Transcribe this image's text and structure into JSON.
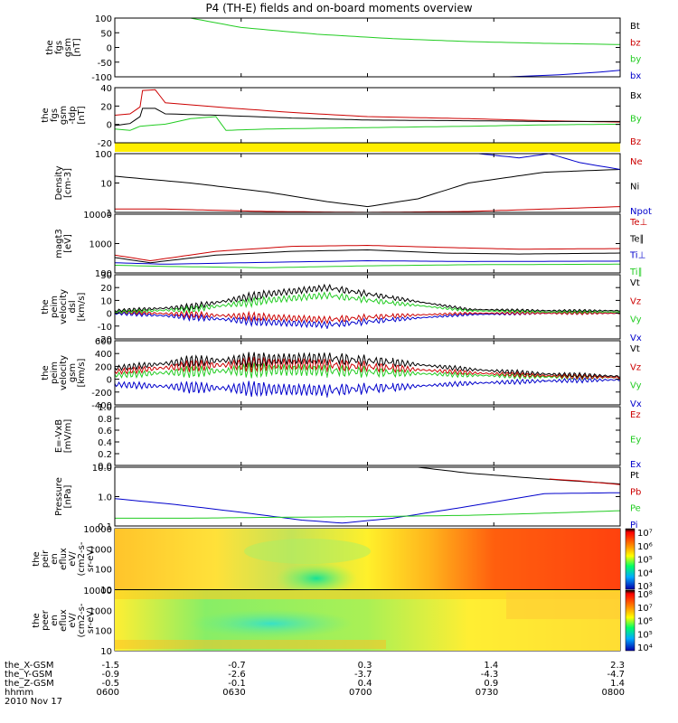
{
  "title": "P4 (TH-E) fields and on-board moments overview",
  "colors": {
    "black": "#000000",
    "red": "#cc0000",
    "green": "#22cc22",
    "blue": "#0000cc",
    "yellow": "#ffee00"
  },
  "chart_data": [
    {
      "type": "line",
      "id": "fgs-gsm",
      "ylabel": [
        "the",
        "fgs",
        "gsm",
        "[nT]"
      ],
      "yticks": [
        "100",
        "50",
        "0",
        "-50",
        "-100"
      ],
      "ylim": [
        -100,
        100
      ],
      "legend": [
        {
          "label": "Bt",
          "color": "black"
        },
        {
          "label": "bz",
          "color": "red"
        },
        {
          "label": "by",
          "color": "green"
        },
        {
          "label": "bx",
          "color": "blue"
        }
      ],
      "series": [
        {
          "name": "by",
          "color": "green",
          "x": [
            0.15,
            0.25,
            0.4,
            0.55,
            0.7,
            0.85,
            1.0
          ],
          "y": [
            100,
            68,
            45,
            30,
            20,
            14,
            10
          ]
        },
        {
          "name": "bx",
          "color": "blue",
          "x": [
            0.78,
            0.88,
            0.95,
            1.0
          ],
          "y": [
            -100,
            -93,
            -85,
            -78
          ]
        }
      ]
    },
    {
      "type": "line",
      "id": "fgs-gsm-tdp",
      "ylabel": [
        "the",
        "fgs",
        "gsm",
        "-tdp",
        "[nT]"
      ],
      "yticks": [
        "40",
        "20",
        "0",
        "-20"
      ],
      "ylim": [
        -30,
        50
      ],
      "legend": [
        {
          "label": "Bx",
          "color": "black"
        },
        {
          "label": "By",
          "color": "green"
        },
        {
          "label": "Bz",
          "color": "red"
        }
      ],
      "series": [
        {
          "name": "Bz",
          "color": "red",
          "x": [
            0,
            0.03,
            0.05,
            0.055,
            0.08,
            0.1,
            0.2,
            0.35,
            0.5,
            0.7,
            0.85,
            1.0
          ],
          "y": [
            10,
            12,
            22,
            46,
            47,
            28,
            22,
            14,
            8,
            5,
            2,
            0
          ]
        },
        {
          "name": "Bx",
          "color": "black",
          "x": [
            0,
            0.03,
            0.05,
            0.055,
            0.08,
            0.1,
            0.2,
            0.35,
            0.5,
            0.7,
            0.85,
            1.0
          ],
          "y": [
            -5,
            -2,
            8,
            20,
            20,
            12,
            10,
            6,
            3,
            2,
            1,
            1
          ]
        },
        {
          "name": "By",
          "color": "green",
          "x": [
            0,
            0.03,
            0.05,
            0.1,
            0.15,
            0.2,
            0.22,
            0.3,
            0.5,
            0.7,
            0.85,
            1.0
          ],
          "y": [
            -10,
            -12,
            -6,
            -3,
            5,
            8,
            -12,
            -10,
            -8,
            -6,
            -4,
            -3
          ]
        }
      ]
    },
    {
      "type": "line",
      "id": "density",
      "ylabel": [
        "Density",
        "[cm-3]"
      ],
      "scale": "log",
      "yticks": [
        "100",
        "10",
        "1"
      ],
      "ylim": [
        0.5,
        200
      ],
      "legend": [
        {
          "label": "Ne",
          "color": "red"
        },
        {
          "label": "Ni",
          "color": "black"
        },
        {
          "label": "Npot",
          "color": "blue"
        }
      ],
      "series": [
        {
          "name": "Ni",
          "color": "black",
          "x": [
            0,
            0.15,
            0.3,
            0.42,
            0.5,
            0.6,
            0.7,
            0.85,
            1.0
          ],
          "y": [
            20,
            10,
            4,
            1.5,
            0.9,
            2,
            10,
            30,
            40
          ]
        },
        {
          "name": "Ne",
          "color": "red",
          "x": [
            0,
            0.1,
            0.3,
            0.5,
            0.7,
            0.85,
            1.0
          ],
          "y": [
            0.7,
            0.7,
            0.55,
            0.5,
            0.55,
            0.7,
            0.9
          ]
        },
        {
          "name": "Npot",
          "color": "blue",
          "x": [
            0.72,
            0.8,
            0.86,
            0.92,
            1.0
          ],
          "y": [
            200,
            130,
            200,
            80,
            40
          ]
        }
      ]
    },
    {
      "type": "line",
      "id": "mom-temp",
      "ylabel": [
        "magt3",
        "[eV]"
      ],
      "scale": "log",
      "yticks": [
        "10000",
        "1000",
        "100"
      ],
      "ylim": [
        100,
        20000
      ],
      "legend": [
        {
          "label": "Te⊥",
          "color": "red"
        },
        {
          "label": "Te∥",
          "color": "black"
        },
        {
          "label": "Ti⊥",
          "color": "blue"
        },
        {
          "label": "Ti∥",
          "color": "green"
        }
      ],
      "series": [
        {
          "name": "Te⊥",
          "color": "red",
          "x": [
            0,
            0.07,
            0.2,
            0.35,
            0.5,
            0.65,
            0.8,
            1.0
          ],
          "y": [
            500,
            300,
            700,
            1100,
            1200,
            1000,
            850,
            900
          ]
        },
        {
          "name": "Te∥",
          "color": "black",
          "x": [
            0,
            0.07,
            0.2,
            0.35,
            0.5,
            0.65,
            0.8,
            1.0
          ],
          "y": [
            400,
            250,
            500,
            700,
            800,
            600,
            550,
            600
          ]
        },
        {
          "name": "Ti⊥",
          "color": "blue",
          "x": [
            0,
            0.1,
            0.3,
            0.5,
            0.7,
            1.0
          ],
          "y": [
            250,
            220,
            260,
            300,
            280,
            290
          ]
        },
        {
          "name": "Ti∥",
          "color": "green",
          "x": [
            0,
            0.1,
            0.3,
            0.5,
            0.7,
            1.0
          ],
          "y": [
            200,
            180,
            160,
            190,
            210,
            220
          ]
        }
      ]
    },
    {
      "type": "line",
      "id": "peim-velocity-dsl",
      "ylabel": [
        "the",
        "peim",
        "velocity",
        "dsl",
        "[km/s]"
      ],
      "yticks": [
        "30",
        "20",
        "10",
        "0",
        "-10",
        "-20"
      ],
      "ylim": [
        -20,
        30
      ],
      "legend": [
        {
          "label": "Vt",
          "color": "black"
        },
        {
          "label": "Vz",
          "color": "red"
        },
        {
          "label": "Vy",
          "color": "green"
        },
        {
          "label": "Vx",
          "color": "blue"
        }
      ],
      "series": [
        {
          "name": "Vx",
          "color": "blue",
          "x": [
            0,
            0.15,
            0.3,
            0.42,
            0.55,
            0.7,
            0.85,
            1.0
          ],
          "y": [
            0,
            -3,
            -7,
            -9,
            -5,
            -1,
            0,
            0
          ]
        },
        {
          "name": "Vz",
          "color": "red",
          "x": [
            0,
            0.15,
            0.3,
            0.42,
            0.55,
            0.7,
            0.85,
            1.0
          ],
          "y": [
            1,
            -1,
            -3,
            -5,
            -2,
            0,
            0,
            0
          ]
        },
        {
          "name": "Vy",
          "color": "green",
          "x": [
            0,
            0.15,
            0.3,
            0.42,
            0.55,
            0.7,
            0.85,
            1.0
          ],
          "y": [
            1,
            3,
            10,
            14,
            8,
            2,
            1,
            1
          ]
        },
        {
          "name": "Vt",
          "color": "black",
          "x": [
            0,
            0.15,
            0.3,
            0.42,
            0.55,
            0.7,
            0.85,
            1.0
          ],
          "y": [
            2,
            5,
            15,
            20,
            12,
            3,
            2,
            2
          ]
        }
      ]
    },
    {
      "type": "line",
      "id": "peim-velocity-gsm",
      "ylabel": [
        "the",
        "peim",
        "velocity",
        "gsm",
        "[km/s]"
      ],
      "yticks": [
        "600",
        "400",
        "200",
        "0",
        "-200",
        "-400"
      ],
      "ylim": [
        -450,
        650
      ],
      "legend": [
        {
          "label": "Vt",
          "color": "black"
        },
        {
          "label": "Vz",
          "color": "red"
        },
        {
          "label": "Vy",
          "color": "green"
        },
        {
          "label": "Vx",
          "color": "blue"
        }
      ],
      "series": [
        {
          "name": "Vx",
          "color": "blue",
          "x": [
            0,
            0.15,
            0.3,
            0.42,
            0.55,
            0.7,
            0.85,
            1.0
          ],
          "y": [
            -100,
            -150,
            -180,
            -200,
            -150,
            -80,
            -40,
            -20
          ]
        },
        {
          "name": "Vy",
          "color": "green",
          "x": [
            0,
            0.15,
            0.3,
            0.42,
            0.55,
            0.7,
            0.85,
            1.0
          ],
          "y": [
            60,
            120,
            150,
            140,
            100,
            60,
            30,
            20
          ]
        },
        {
          "name": "Vz",
          "color": "red",
          "x": [
            0,
            0.15,
            0.3,
            0.42,
            0.55,
            0.7,
            0.85,
            1.0
          ],
          "y": [
            120,
            220,
            250,
            240,
            180,
            100,
            50,
            20
          ]
        },
        {
          "name": "Vt",
          "color": "black",
          "x": [
            0,
            0.15,
            0.3,
            0.42,
            0.55,
            0.7,
            0.85,
            1.0
          ],
          "y": [
            180,
            300,
            330,
            350,
            280,
            160,
            80,
            40
          ]
        }
      ]
    },
    {
      "type": "line",
      "id": "e-vxb",
      "ylabel": [
        "E=-VxB",
        "[mV/m]"
      ],
      "yticks": [
        "1.0",
        "0.8",
        "0.6",
        "0.4",
        "0.2",
        "0.0"
      ],
      "ylim": [
        0,
        1
      ],
      "legend": [
        {
          "label": "Ez",
          "color": "red"
        },
        {
          "label": "Ey",
          "color": "green"
        },
        {
          "label": "Ex",
          "color": "blue"
        }
      ],
      "series": []
    },
    {
      "type": "line",
      "id": "pressure",
      "ylabel": [
        "Pressure",
        "[nPa]"
      ],
      "scale": "log",
      "yticks": [
        "10.0",
        "1.0",
        "0.1"
      ],
      "ylim": [
        0.02,
        20
      ],
      "legend": [
        {
          "label": "Pt",
          "color": "black"
        },
        {
          "label": "Pb",
          "color": "red"
        },
        {
          "label": "Pe",
          "color": "green"
        },
        {
          "label": "Pi",
          "color": "blue"
        }
      ],
      "series": [
        {
          "name": "Pi",
          "color": "blue",
          "x": [
            0,
            0.12,
            0.25,
            0.37,
            0.45,
            0.55,
            0.7,
            0.85,
            1.0
          ],
          "y": [
            0.5,
            0.25,
            0.1,
            0.04,
            0.028,
            0.05,
            0.2,
            0.9,
            1.0
          ]
        },
        {
          "name": "Pe",
          "color": "green",
          "x": [
            0,
            0.15,
            0.3,
            0.5,
            0.7,
            0.85,
            1.0
          ],
          "y": [
            0.05,
            0.05,
            0.055,
            0.06,
            0.07,
            0.09,
            0.12
          ]
        },
        {
          "name": "Pt",
          "color": "black",
          "x": [
            0.6,
            0.7,
            0.85,
            1.0
          ],
          "y": [
            20,
            10,
            5,
            2.8
          ]
        },
        {
          "name": "Pb",
          "color": "red",
          "x": [
            0.86,
            0.92,
            1.0
          ],
          "y": [
            5,
            4,
            2.6
          ]
        }
      ]
    },
    {
      "type": "heatmap",
      "id": "peir-en-eflux",
      "ylabel": [
        "the",
        "peir",
        "en",
        "eflux",
        "eV/",
        "(cm2-s-",
        "sr-eV)"
      ],
      "scale": "log",
      "yticks": [
        "10000",
        "1000",
        "100",
        "10"
      ],
      "colorbar_ticks": [
        "10⁷",
        "10⁶",
        "10⁵",
        "10⁴",
        "10³"
      ]
    },
    {
      "type": "heatmap",
      "id": "peer-en-eflux",
      "ylabel": [
        "the",
        "peer",
        "en",
        "eflux",
        "eV/",
        "(cm2-s-",
        "sr-eV)"
      ],
      "scale": "log",
      "yticks": [
        "10000",
        "1000",
        "100",
        "10"
      ],
      "colorbar_ticks": [
        "10⁸",
        "10⁷",
        "10⁶",
        "10⁵",
        "10⁴"
      ]
    }
  ],
  "xaxis": {
    "row_labels": [
      "the_X-GSM",
      "the_Y-GSM",
      "the_Z-GSM",
      "hhmm",
      "2010 Nov 17"
    ],
    "columns": [
      [
        "-1.5",
        "-0.9",
        "-0.5",
        "0600"
      ],
      [
        "-0.7",
        "-2.6",
        "-0.1",
        "0630"
      ],
      [
        "0.3",
        "-3.7",
        "0.4",
        "0700"
      ],
      [
        "1.4",
        "-4.3",
        "0.9",
        "0730"
      ],
      [
        "2.3",
        "-4.7",
        "1.4",
        "0800"
      ]
    ]
  }
}
